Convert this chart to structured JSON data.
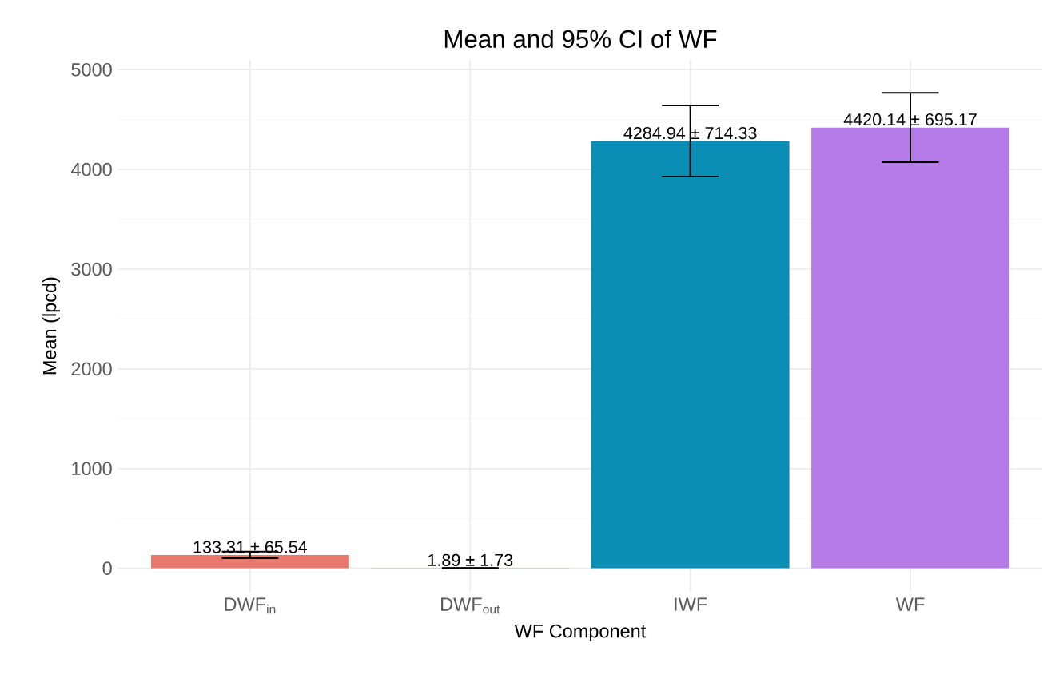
{
  "chart_data": {
    "type": "bar",
    "title": "Mean and 95% CI of WF",
    "xlabel": "WF Component",
    "ylabel": "Mean (lpcd)",
    "categories": [
      "DWF$_{in}$",
      "DWF$_{out}$",
      "IWF",
      "WF"
    ],
    "values": [
      133.31,
      1.89,
      4284.94,
      4420.14
    ],
    "errors": [
      32.77,
      0.87,
      357.17,
      347.59
    ],
    "value_labels": [
      "133.31 ± 65.54",
      "1.89 ± 1.73",
      "4284.94 ± 714.33",
      "4420.14 ± 695.17"
    ],
    "colors": [
      "#e8776c",
      "#7cae00",
      "#0a8eb5",
      "#b47ae8"
    ],
    "ylim": [
      -240,
      5100
    ],
    "yticks": [
      0,
      1000,
      2000,
      3000,
      4000,
      5000
    ],
    "grid": true
  }
}
